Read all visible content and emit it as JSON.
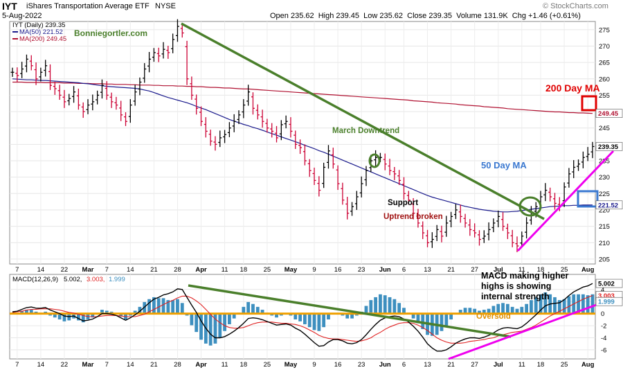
{
  "header": {
    "symbol": "IYT",
    "name": "iShares Transportation Average ETF",
    "exchange": "NYSE",
    "date": "5-Aug-2022",
    "ohlc": "Open 235.62  High 239.45  Low 235.62  Close 239.35  Volume 131.9K  Chg +1.46 (+0.61%)",
    "brand": "© StockCharts.com"
  },
  "legend": {
    "price": "IYT (Daily) 239.35",
    "ma50": "MA(50) 221.52",
    "ma200": "MA(200) 249.45",
    "site": "Bonniegortler.com"
  },
  "annotations": {
    "ma200": "200 Day MA",
    "ma50": "50 Day MA",
    "downtrend": "March Downtrend",
    "support": "Support",
    "uptrend_broken": "Uptrend broken",
    "macd_note": [
      "MACD making higher",
      "highs is showing",
      "internal strength"
    ],
    "oversold": "Oversold"
  },
  "macd_legend": {
    "label": "MACD(12,26,9)",
    "v1": "5.002,",
    "v2": "3.003,",
    "v3": "1.999"
  },
  "colors": {
    "candle": "#000000",
    "down_candle": "#cc0033",
    "ma50": "#1a1a8c",
    "ma200": "#b01030",
    "trend_green": "#4a7f2b",
    "uptrend_magenta": "#ee00ee",
    "callout_red": "#e00000",
    "callout_blue": "#3a78d0",
    "hist": "#3d8fbf",
    "oversold_line": "#f0a000",
    "macd": "#000000",
    "signal": "#e02020"
  },
  "chart_data": [
    {
      "type": "line",
      "panel": "price",
      "x_ticks": [
        "7",
        "14",
        "22",
        "Mar",
        "7",
        "14",
        "21",
        "28",
        "Apr",
        "11",
        "18",
        "25",
        "May",
        "9",
        "16",
        "23",
        "Jun",
        "6",
        "13",
        "21",
        "27",
        "Jul",
        "11",
        "18",
        "25",
        "Aug"
      ],
      "y_ticks": [
        205,
        210,
        215,
        220,
        225,
        230,
        235,
        240,
        245,
        250,
        255,
        260,
        265,
        270,
        275
      ],
      "ylim": [
        203.5,
        277.5
      ],
      "value_labels": {
        "close": "239.35",
        "ma200": "249.45",
        "ma50": "221.52"
      },
      "close": [
        262,
        261,
        263,
        266,
        264,
        260,
        262,
        264,
        258,
        257,
        255,
        253,
        254,
        256,
        252,
        250,
        252,
        253,
        255,
        258,
        255,
        253,
        252,
        249,
        247,
        252,
        256,
        259,
        263,
        266,
        268,
        267,
        269,
        268,
        272,
        276,
        274,
        260,
        255,
        251,
        247,
        244,
        241,
        240,
        242,
        243,
        245,
        247,
        249,
        252,
        256,
        251,
        249,
        247,
        245,
        244,
        242,
        246,
        247,
        244,
        240,
        239,
        235,
        232,
        229,
        226,
        233,
        238,
        234,
        228,
        223,
        219,
        221,
        224,
        228,
        232,
        235,
        236,
        236,
        234,
        232,
        231,
        229,
        225,
        223,
        219,
        216,
        213,
        210,
        211,
        214,
        212,
        216,
        218,
        220,
        218,
        216,
        214,
        213,
        211,
        212,
        214,
        216,
        218,
        215,
        213,
        210,
        209,
        212,
        216,
        219,
        221,
        224,
        226,
        224,
        222,
        221,
        227,
        231,
        233,
        234,
        236,
        237,
        239.35
      ],
      "ma50": [
        260.0,
        259.9,
        259.8,
        259.7,
        259.7,
        259.6,
        259.5,
        259.5,
        259.4,
        259.3,
        259.2,
        259.1,
        259.0,
        258.9,
        258.8,
        258.6,
        258.5,
        258.3,
        258.1,
        257.9,
        257.7,
        257.6,
        257.5,
        257.4,
        257.3,
        257.2,
        257.1,
        256.9,
        256.6,
        256.3,
        255.8,
        255.3,
        254.8,
        254.3,
        253.9,
        253.5,
        253.1,
        252.7,
        252.2,
        251.6,
        251.1,
        250.6,
        250.0,
        249.4,
        248.8,
        248.2,
        247.6,
        247.1,
        246.6,
        246.1,
        245.7,
        245.2,
        244.8,
        244.3,
        243.8,
        243.3,
        242.8,
        242.3,
        241.8,
        241.3,
        240.8,
        240.3,
        239.7,
        239.2,
        238.7,
        238.1,
        237.6,
        237.0,
        236.4,
        235.8,
        235.2,
        234.6,
        234.0,
        233.4,
        232.8,
        232.2,
        231.6,
        231.0,
        230.4,
        229.8,
        229.2,
        228.6,
        228.0,
        227.4,
        226.8,
        226.2,
        225.6,
        225.0,
        224.4,
        223.9,
        223.5,
        223.1,
        222.7,
        222.3,
        221.9,
        221.5,
        221.1,
        220.8,
        220.5,
        220.2,
        220.0,
        219.8,
        219.6,
        219.5,
        219.4,
        219.4,
        219.5,
        219.6,
        219.8,
        220.0,
        220.2,
        220.4,
        220.6,
        220.8,
        221.0,
        221.1,
        221.2,
        221.3,
        221.3,
        221.4,
        221.4,
        221.5,
        221.5,
        221.52
      ],
      "ma200": [
        259.0,
        259.0,
        259.0,
        258.9,
        258.9,
        258.9,
        258.9,
        258.8,
        258.8,
        258.8,
        258.8,
        258.7,
        258.7,
        258.7,
        258.6,
        258.6,
        258.6,
        258.5,
        258.5,
        258.5,
        258.4,
        258.4,
        258.3,
        258.3,
        258.3,
        258.2,
        258.2,
        258.1,
        258.1,
        258.1,
        258.0,
        258.0,
        257.9,
        257.9,
        257.9,
        257.8,
        257.8,
        257.7,
        257.7,
        257.6,
        257.6,
        257.5,
        257.4,
        257.4,
        257.3,
        257.2,
        257.2,
        257.1,
        257.0,
        256.9,
        256.9,
        256.8,
        256.7,
        256.6,
        256.5,
        256.4,
        256.3,
        256.2,
        256.1,
        256.0,
        255.9,
        255.8,
        255.7,
        255.6,
        255.5,
        255.4,
        255.3,
        255.2,
        255.1,
        255.0,
        254.9,
        254.8,
        254.7,
        254.6,
        254.5,
        254.4,
        254.3,
        254.2,
        254.1,
        254.0,
        253.9,
        253.8,
        253.7,
        253.6,
        253.5,
        253.3,
        253.2,
        253.1,
        253.0,
        252.9,
        252.7,
        252.6,
        252.5,
        252.4,
        252.3,
        252.1,
        252.0,
        251.9,
        251.8,
        251.7,
        251.5,
        251.4,
        251.3,
        251.2,
        251.1,
        250.9,
        250.8,
        250.7,
        250.6,
        250.5,
        250.4,
        250.3,
        250.2,
        250.1,
        250.0,
        249.9,
        249.9,
        249.8,
        249.7,
        249.7,
        249.6,
        249.6,
        249.5,
        249.45
      ]
    },
    {
      "type": "line",
      "panel": "macd",
      "y_ticks": [
        -6,
        -4,
        -2,
        0,
        2,
        4
      ],
      "ylim": [
        -7.5,
        6.5
      ],
      "value_labels": {
        "macd": "5.002",
        "signal": "3.003",
        "hist": "1.999"
      },
      "macd": [
        0.3,
        0.4,
        0.7,
        1.0,
        1.1,
        0.9,
        0.9,
        1.0,
        0.6,
        0.3,
        0.0,
        -0.4,
        -0.5,
        -0.4,
        -0.8,
        -1.2,
        -1.1,
        -0.9,
        -0.5,
        0.0,
        0.0,
        -0.1,
        -0.3,
        -0.7,
        -1.1,
        -0.7,
        -0.2,
        0.4,
        1.1,
        1.8,
        2.4,
        2.7,
        3.1,
        3.3,
        3.6,
        4.1,
        4.0,
        2.7,
        1.4,
        0.2,
        -1.2,
        -2.4,
        -3.4,
        -4.0,
        -4.0,
        -3.8,
        -3.4,
        -2.9,
        -2.3,
        -1.6,
        -0.8,
        -0.7,
        -0.8,
        -1.0,
        -1.3,
        -1.6,
        -1.9,
        -1.8,
        -1.7,
        -1.9,
        -2.4,
        -2.8,
        -3.4,
        -4.1,
        -4.8,
        -5.4,
        -5.3,
        -4.7,
        -4.3,
        -4.3,
        -4.5,
        -4.9,
        -5.0,
        -4.8,
        -4.3,
        -3.5,
        -2.6,
        -1.8,
        -1.1,
        -0.7,
        -0.5,
        -0.4,
        -0.5,
        -0.9,
        -1.4,
        -2.1,
        -2.9,
        -3.9,
        -5.0,
        -5.7,
        -6.2,
        -6.2,
        -6.0,
        -5.5,
        -4.9,
        -4.5,
        -4.2,
        -4.0,
        -4.0,
        -4.1,
        -3.9,
        -3.6,
        -3.2,
        -2.7,
        -2.4,
        -2.3,
        -2.4,
        -2.5,
        -2.2,
        -1.6,
        -0.9,
        -0.2,
        0.6,
        1.3,
        1.6,
        1.7,
        1.8,
        2.3,
        3.0,
        3.6,
        4.0,
        4.4,
        4.6,
        5.002
      ],
      "signal": [
        0.2,
        0.3,
        0.4,
        0.6,
        0.7,
        0.7,
        0.8,
        0.8,
        0.8,
        0.7,
        0.6,
        0.4,
        0.2,
        0.1,
        -0.1,
        -0.3,
        -0.5,
        -0.5,
        -0.5,
        -0.4,
        -0.3,
        -0.3,
        -0.3,
        -0.4,
        -0.5,
        -0.5,
        -0.5,
        -0.3,
        -0.1,
        0.3,
        0.7,
        1.1,
        1.5,
        1.9,
        2.2,
        2.6,
        2.9,
        2.9,
        2.6,
        2.1,
        1.5,
        0.7,
        -0.1,
        -0.9,
        -1.5,
        -2.0,
        -2.3,
        -2.4,
        -2.4,
        -2.3,
        -2.0,
        -1.7,
        -1.5,
        -1.4,
        -1.4,
        -1.4,
        -1.5,
        -1.6,
        -1.6,
        -1.7,
        -1.8,
        -2.0,
        -2.3,
        -2.7,
        -3.1,
        -3.6,
        -3.9,
        -4.1,
        -4.2,
        -4.2,
        -4.3,
        -4.4,
        -4.5,
        -4.6,
        -4.5,
        -4.3,
        -4.0,
        -3.5,
        -3.1,
        -2.6,
        -2.2,
        -1.9,
        -1.6,
        -1.5,
        -1.5,
        -1.6,
        -1.9,
        -2.3,
        -2.8,
        -3.4,
        -4.0,
        -4.4,
        -4.7,
        -4.9,
        -4.9,
        -4.9,
        -4.8,
        -4.6,
        -4.5,
        -4.4,
        -4.3,
        -4.1,
        -4.0,
        -3.7,
        -3.5,
        -3.3,
        -3.1,
        -3.0,
        -2.9,
        -2.6,
        -2.3,
        -1.9,
        -1.4,
        -0.9,
        -0.4,
        0.0,
        0.4,
        0.8,
        1.2,
        1.6,
        2.0,
        2.4,
        2.7,
        3.003
      ]
    }
  ]
}
